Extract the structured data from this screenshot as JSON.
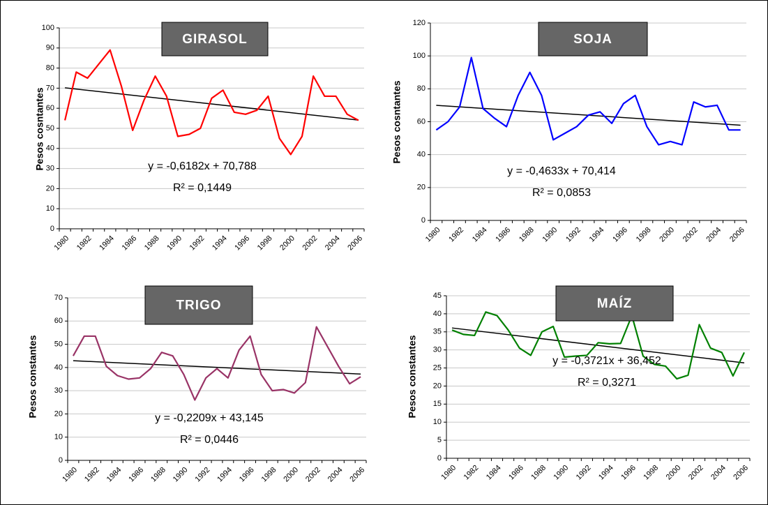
{
  "chart_data": [
    {
      "type": "line",
      "title": "GIRASOL",
      "y_label": "Pesos cosntantes",
      "categories": [
        "1980",
        null,
        "1982",
        null,
        "1984",
        null,
        "1986",
        null,
        "1988",
        null,
        "1990",
        null,
        "1992",
        null,
        "1994",
        null,
        "1996",
        null,
        "1998",
        null,
        "2000",
        null,
        "2002",
        null,
        "2004",
        null,
        "2006"
      ],
      "series": [
        {
          "name": "GIRASOL",
          "color": "#ff0000",
          "values": [
            54,
            78,
            75,
            82,
            89,
            71,
            49,
            64,
            76,
            66,
            46,
            47,
            50,
            65,
            69,
            58,
            57,
            59,
            66,
            45,
            37,
            46,
            76,
            66,
            66,
            57,
            54
          ]
        }
      ],
      "trendline": {
        "slope": -0.6182,
        "intercept": 70.788,
        "color": "#000000"
      },
      "equation": "y = -0,6182x + 70,788",
      "r2": "R² = 0,1449",
      "ylim": [
        0,
        100
      ],
      "yticks": [
        0,
        10,
        20,
        30,
        40,
        50,
        60,
        70,
        80,
        90,
        100
      ],
      "grid": true
    },
    {
      "type": "line",
      "title": "SOJA",
      "y_label": "Pesos cosntantes",
      "categories": [
        "1980",
        null,
        "1982",
        null,
        "1984",
        null,
        "1986",
        null,
        "1988",
        null,
        "1990",
        null,
        "1992",
        null,
        "1994",
        null,
        "1996",
        null,
        "1998",
        null,
        "2000",
        null,
        "2002",
        null,
        "2004",
        null,
        "2006"
      ],
      "series": [
        {
          "name": "SOJA",
          "color": "#0000ff",
          "values": [
            55,
            60,
            69,
            99,
            68,
            62,
            57,
            76,
            90,
            76,
            49,
            53,
            57,
            64,
            66,
            59,
            71,
            76,
            57,
            46,
            48,
            46,
            72,
            69,
            70,
            55,
            55
          ]
        }
      ],
      "trendline": {
        "slope": -0.4633,
        "intercept": 70.414,
        "color": "#000000"
      },
      "equation": "y = -0,4633x + 70,414",
      "r2": "R² = 0,0853",
      "ylim": [
        0,
        120
      ],
      "yticks": [
        0,
        20,
        40,
        60,
        80,
        100,
        120
      ],
      "grid": true
    },
    {
      "type": "line",
      "title": "TRIGO",
      "y_label": "Pesos constantes",
      "categories": [
        "1980",
        null,
        "1982",
        null,
        "1984",
        null,
        "1986",
        null,
        "1988",
        null,
        "1990",
        null,
        "1992",
        null,
        "1994",
        null,
        "1996",
        null,
        "1998",
        null,
        "2000",
        null,
        "2002",
        null,
        "2004",
        null,
        "2006"
      ],
      "series": [
        {
          "name": "TRIGO",
          "color": "#993366",
          "values": [
            45,
            53.5,
            53.5,
            40.5,
            36.5,
            35,
            35.5,
            39.5,
            46.5,
            45,
            37,
            26,
            35.5,
            39.5,
            35.5,
            47.5,
            53.5,
            37,
            30,
            30.5,
            29,
            33.5,
            57.5,
            49,
            40.5,
            33,
            36
          ]
        }
      ],
      "trendline": {
        "slope": -0.2209,
        "intercept": 43.145,
        "color": "#000000"
      },
      "equation": "y = -0,2209x + 43,145",
      "r2": "R² = 0,0446",
      "ylim": [
        0,
        70
      ],
      "yticks": [
        0,
        10,
        20,
        30,
        40,
        50,
        60,
        70
      ],
      "grid": true
    },
    {
      "type": "line",
      "title": "MAÍZ",
      "y_label": "Pesos constantes",
      "categories": [
        "1980",
        null,
        "1982",
        null,
        "1984",
        null,
        "1986",
        null,
        "1988",
        null,
        "1990",
        null,
        "1992",
        null,
        "1994",
        null,
        "1996",
        null,
        "1998",
        null,
        "2000",
        null,
        "2002",
        null,
        "2004",
        null,
        "2006"
      ],
      "series": [
        {
          "name": "MAÍZ",
          "color": "#008000",
          "values": [
            35.5,
            34.3,
            34,
            40.5,
            39.5,
            35.5,
            30.5,
            28.5,
            35,
            36.5,
            28,
            28.3,
            28.5,
            32,
            31.7,
            31.8,
            39.5,
            28.3,
            26,
            25.5,
            22,
            23,
            37,
            30.5,
            29.3,
            22.8,
            29.3
          ]
        }
      ],
      "trendline": {
        "slope": -0.3721,
        "intercept": 36.452,
        "color": "#000000"
      },
      "equation": "y = -0,3721x + 36,452",
      "r2": "R² = 0,3271",
      "ylim": [
        0,
        45
      ],
      "yticks": [
        0,
        5,
        10,
        15,
        20,
        25,
        30,
        35,
        40,
        45
      ],
      "grid": true
    }
  ]
}
